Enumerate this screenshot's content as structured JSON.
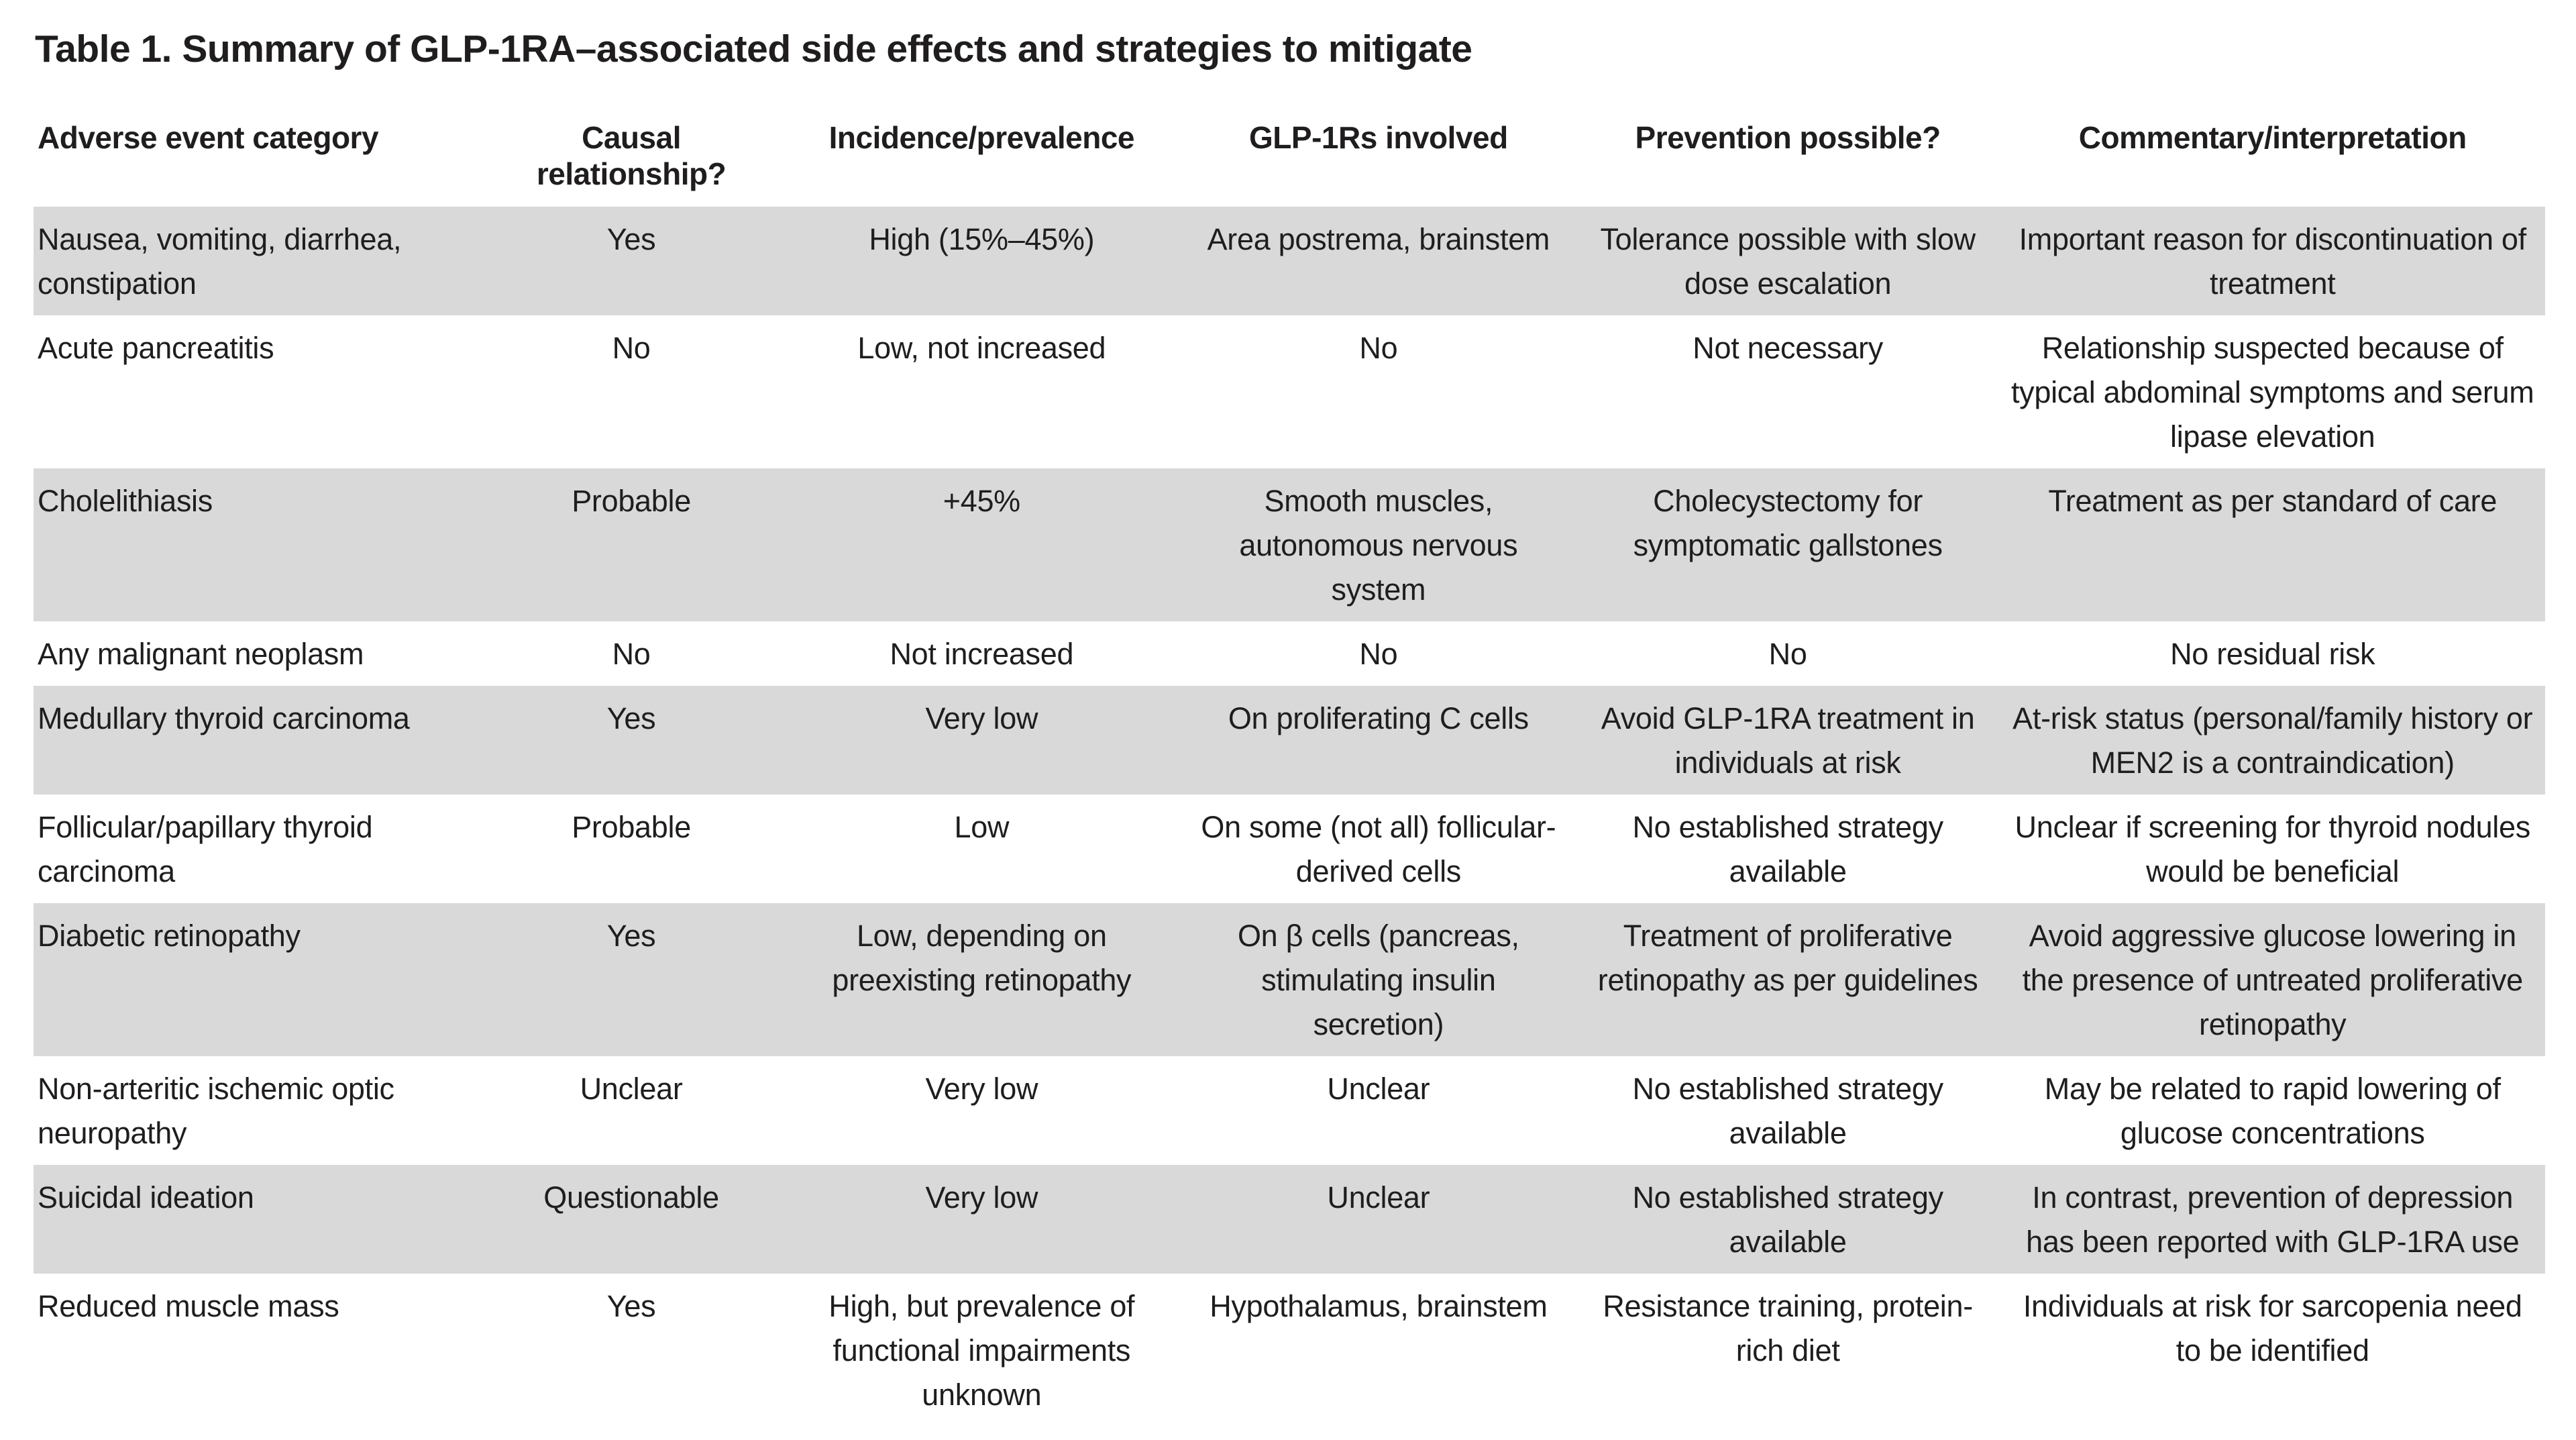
{
  "title": "Table 1. Summary of GLP-1RA–associated side effects and strategies to mitigate",
  "colors": {
    "row_shade": "#d9d9d9",
    "text": "#1f1d1e",
    "background": "#ffffff"
  },
  "table": {
    "columns": [
      {
        "label": "Adverse event category",
        "align": "left"
      },
      {
        "label": "Causal relationship?",
        "align": "center"
      },
      {
        "label": "Incidence/prevalence",
        "align": "center"
      },
      {
        "label": "GLP-1Rs involved",
        "align": "center"
      },
      {
        "label": "Prevention possible?",
        "align": "center"
      },
      {
        "label": "Commentary/interpretation",
        "align": "center"
      }
    ],
    "rows": [
      {
        "shaded": true,
        "cells": [
          "Nausea, vomiting, diarrhea, constipation",
          "Yes",
          "High (15%–45%)",
          "Area postrema, brainstem",
          "Tolerance possible with slow dose escalation",
          "Important reason for discontinuation of treatment"
        ]
      },
      {
        "shaded": false,
        "cells": [
          "Acute pancreatitis",
          "No",
          "Low, not increased",
          "No",
          "Not necessary",
          "Relationship suspected because of typical abdominal symptoms and serum lipase elevation"
        ]
      },
      {
        "shaded": true,
        "cells": [
          "Cholelithiasis",
          "Probable",
          "+45%",
          "Smooth muscles, autonomous nervous system",
          "Cholecystectomy for symptomatic gallstones",
          "Treatment as per standard of care"
        ]
      },
      {
        "shaded": false,
        "cells": [
          "Any malignant neoplasm",
          "No",
          "Not increased",
          "No",
          "No",
          "No residual risk"
        ]
      },
      {
        "shaded": true,
        "cells": [
          "Medullary thyroid carcinoma",
          "Yes",
          "Very low",
          "On proliferating C cells",
          "Avoid GLP-1RA treatment in individuals at risk",
          "At-risk status (personal/family history or MEN2 is a contraindication)"
        ]
      },
      {
        "shaded": false,
        "cells": [
          "Follicular/papillary thyroid carcinoma",
          "Probable",
          "Low",
          "On some (not all) follicular-derived cells",
          "No established strategy available",
          "Unclear if screening for thyroid nodules would be beneficial"
        ]
      },
      {
        "shaded": true,
        "cells": [
          "Diabetic retinopathy",
          "Yes",
          "Low, depending on preexisting retinopathy",
          "On β cells (pancreas, stimulating insulin secretion)",
          "Treatment of proliferative retinopathy as per guidelines",
          "Avoid aggressive glucose lowering in the presence of untreated proliferative retinopathy"
        ]
      },
      {
        "shaded": false,
        "cells": [
          "Non-arteritic ischemic optic neuropathy",
          "Unclear",
          "Very low",
          "Unclear",
          "No established strategy available",
          "May be related to rapid lowering of glucose concentrations"
        ]
      },
      {
        "shaded": true,
        "cells": [
          "Suicidal ideation",
          "Questionable",
          "Very low",
          "Unclear",
          "No established strategy available",
          "In contrast, prevention of depression has been reported with GLP-1RA use"
        ]
      },
      {
        "shaded": false,
        "cells": [
          "Reduced muscle mass",
          "Yes",
          "High, but prevalence of functional impairments unknown",
          "Hypothalamus, brainstem",
          "Resistance training, protein-rich diet",
          "Individuals at risk for sarcopenia need to be identified"
        ]
      }
    ]
  }
}
